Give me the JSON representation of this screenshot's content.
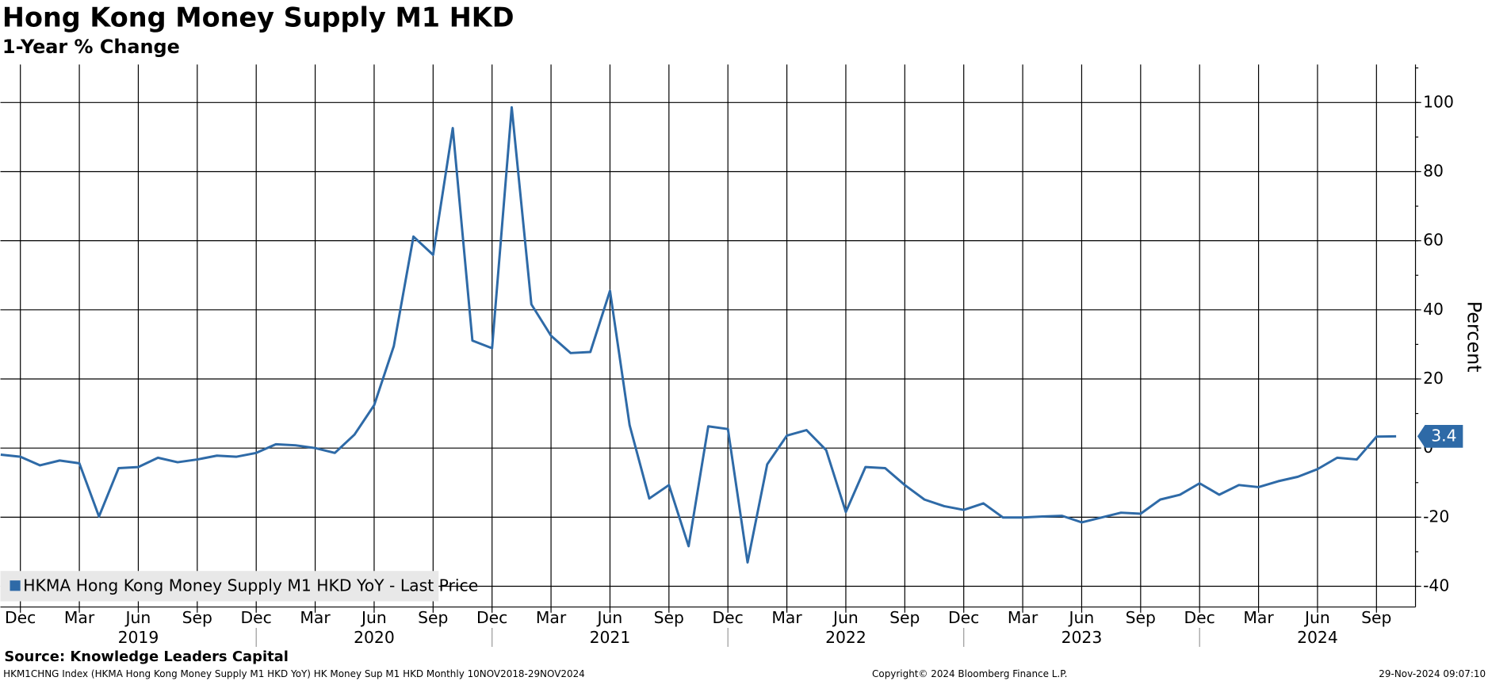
{
  "chart_data": {
    "type": "line",
    "title": "Hong Kong Money Supply M1 HKD",
    "subtitle": "1-Year % Change",
    "y_label": "Percent",
    "x": [
      "2018-11",
      "2018-12",
      "2019-01",
      "2019-02",
      "2019-03",
      "2019-04",
      "2019-05",
      "2019-06",
      "2019-07",
      "2019-08",
      "2019-09",
      "2019-10",
      "2019-11",
      "2019-12",
      "2020-01",
      "2020-02",
      "2020-03",
      "2020-04",
      "2020-05",
      "2020-06",
      "2020-07",
      "2020-08",
      "2020-09",
      "2020-10",
      "2020-11",
      "2020-12",
      "2021-01",
      "2021-02",
      "2021-03",
      "2021-04",
      "2021-05",
      "2021-06",
      "2021-07",
      "2021-08",
      "2021-09",
      "2021-10",
      "2021-11",
      "2021-12",
      "2022-01",
      "2022-02",
      "2022-03",
      "2022-04",
      "2022-05",
      "2022-06",
      "2022-07",
      "2022-08",
      "2022-09",
      "2022-10",
      "2022-11",
      "2022-12",
      "2023-01",
      "2023-02",
      "2023-03",
      "2023-04",
      "2023-05",
      "2023-06",
      "2023-07",
      "2023-08",
      "2023-09",
      "2023-10",
      "2023-11",
      "2023-12",
      "2024-01",
      "2024-02",
      "2024-03",
      "2024-04",
      "2024-05",
      "2024-06",
      "2024-07",
      "2024-08",
      "2024-09",
      "2024-10"
    ],
    "series": [
      {
        "name": "HKMA Hong Kong Money Supply M1 HKD YoY - Last Price",
        "color": "#2e6aa7",
        "values": [
          -1.9,
          -2.5,
          -5.0,
          -3.6,
          -4.4,
          -19.8,
          -5.8,
          -5.5,
          -2.8,
          -4.1,
          -3.3,
          -2.2,
          -2.5,
          -1.4,
          1.1,
          0.8,
          0,
          -1.4,
          3.9,
          12.4,
          29.5,
          61.2,
          55.9,
          92.6,
          31.1,
          28.9,
          98.6,
          41.6,
          32.5,
          27.5,
          27.8,
          45.5,
          6.6,
          -14.6,
          -10.7,
          -28.4,
          6.3,
          5.5,
          -33.1,
          -4.7,
          3.6,
          5.2,
          -0.6,
          -18.5,
          -5.5,
          -5.8,
          -10.7,
          -14.9,
          -16.8,
          -17.9,
          -16.0,
          -20.1,
          -20.1,
          -19.8,
          -19.6,
          -21.5,
          -20.1,
          -18.7,
          -19.0,
          -14.9,
          -13.5,
          -10.2,
          -13.5,
          -10.7,
          -11.3,
          -9.6,
          -8.3,
          -6.1,
          -2.8,
          -3.3,
          3.3,
          3.4
        ]
      }
    ],
    "ylim": [
      -46,
      111
    ],
    "yticks": [
      -40,
      -20,
      0,
      20,
      40,
      60,
      80,
      100
    ],
    "xticks": [
      {
        "value": "2018-12",
        "label": "Dec"
      },
      {
        "value": "2019-03",
        "label": "Mar"
      },
      {
        "value": "2019-06",
        "label": "Jun"
      },
      {
        "value": "2019-09",
        "label": "Sep"
      },
      {
        "value": "2019-12",
        "label": "Dec"
      },
      {
        "value": "2020-03",
        "label": "Mar"
      },
      {
        "value": "2020-06",
        "label": "Jun"
      },
      {
        "value": "2020-09",
        "label": "Sep"
      },
      {
        "value": "2020-12",
        "label": "Dec"
      },
      {
        "value": "2021-03",
        "label": "Mar"
      },
      {
        "value": "2021-06",
        "label": "Jun"
      },
      {
        "value": "2021-09",
        "label": "Sep"
      },
      {
        "value": "2021-12",
        "label": "Dec"
      },
      {
        "value": "2022-03",
        "label": "Mar"
      },
      {
        "value": "2022-06",
        "label": "Jun"
      },
      {
        "value": "2022-09",
        "label": "Sep"
      },
      {
        "value": "2022-12",
        "label": "Dec"
      },
      {
        "value": "2023-03",
        "label": "Mar"
      },
      {
        "value": "2023-06",
        "label": "Jun"
      },
      {
        "value": "2023-09",
        "label": "Sep"
      },
      {
        "value": "2023-12",
        "label": "Dec"
      },
      {
        "value": "2024-03",
        "label": "Mar"
      },
      {
        "value": "2024-06",
        "label": "Jun"
      },
      {
        "value": "2024-09",
        "label": "Sep"
      }
    ],
    "x_year_labels": [
      {
        "value": "2019-06",
        "label": "2019"
      },
      {
        "value": "2020-06",
        "label": "2020"
      },
      {
        "value": "2021-06",
        "label": "2021"
      },
      {
        "value": "2022-06",
        "label": "2022"
      },
      {
        "value": "2023-06",
        "label": "2023"
      },
      {
        "value": "2024-06",
        "label": "2024"
      }
    ],
    "grid": true,
    "legend": "lower left",
    "source": "Source: Knowledge Leaders Capital",
    "footer_info": "HKM1CHNG Index (HKMA Hong Kong Money Supply M1 HKD YoY) HK Money Sup M1 HKD  Monthly 10NOV2018-29NOV2024",
    "copyright": "Copyright© 2024 Bloomberg Finance L.P.",
    "timestamp": "29-Nov-2024 09:07:10"
  }
}
